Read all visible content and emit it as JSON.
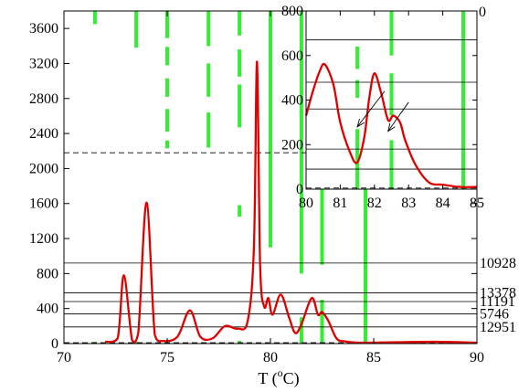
{
  "chart_data": [
    {
      "type": "line",
      "xlabel": {
        "pre": "T (",
        "sup": "o",
        "post": "C)"
      },
      "xlim": [
        70,
        90
      ],
      "ylim": [
        0,
        3800
      ],
      "xticks": [
        70,
        75,
        80,
        85,
        90
      ],
      "yticks": [
        0,
        400,
        800,
        1200,
        1600,
        2000,
        2400,
        2800,
        3200,
        3600
      ],
      "grid": false,
      "series": [
        {
          "color": "#e00000",
          "x": [
            72.0,
            72.6,
            72.9,
            73.3,
            73.6,
            74.0,
            74.4,
            74.8,
            75.5,
            76.1,
            76.6,
            77.2,
            77.8,
            78.4,
            78.9,
            79.2,
            79.35,
            79.5,
            79.7,
            79.9,
            80.1,
            80.5,
            80.9,
            81.2,
            81.5,
            82.0,
            82.3,
            82.5,
            82.8,
            83.2,
            83.6,
            84.5,
            86.0,
            88.0,
            90.0
          ],
          "y": [
            20,
            60,
            780,
            40,
            120,
            1610,
            100,
            30,
            80,
            380,
            80,
            60,
            200,
            170,
            260,
            1100,
            3220,
            900,
            420,
            520,
            330,
            560,
            300,
            120,
            220,
            520,
            330,
            360,
            260,
            60,
            25,
            10,
            15,
            20,
            10
          ]
        }
      ],
      "hlines": {
        "solid": [
          {
            "y": 920,
            "label": "10928"
          },
          {
            "y": 580,
            "label": "13378"
          },
          {
            "y": 480,
            "label": "11191"
          },
          {
            "y": 340,
            "label": "5746"
          },
          {
            "y": 190,
            "label": "12951"
          }
        ],
        "dashed": [
          2180,
          10
        ]
      },
      "vbars": {
        "color": "#33ee33",
        "segments": [
          {
            "x": 71.5,
            "y0": 3650,
            "y1": 3800
          },
          {
            "x": 71.5,
            "y0": 0,
            "y1": 20
          },
          {
            "x": 73.5,
            "y0": 3380,
            "y1": 3800
          },
          {
            "x": 73.5,
            "y0": 0,
            "y1": 20
          },
          {
            "x": 75.0,
            "y0": 3490,
            "y1": 3800
          },
          {
            "x": 75.0,
            "y0": 3180,
            "y1": 3390
          },
          {
            "x": 75.0,
            "y0": 2820,
            "y1": 3030
          },
          {
            "x": 75.0,
            "y0": 2420,
            "y1": 2680
          },
          {
            "x": 75.0,
            "y0": 2230,
            "y1": 2320
          },
          {
            "x": 77.0,
            "y0": 3400,
            "y1": 3800
          },
          {
            "x": 77.0,
            "y0": 2820,
            "y1": 3200
          },
          {
            "x": 77.0,
            "y0": 2240,
            "y1": 2640
          },
          {
            "x": 78.5,
            "y0": 3520,
            "y1": 3800
          },
          {
            "x": 78.5,
            "y0": 3050,
            "y1": 3360
          },
          {
            "x": 78.5,
            "y0": 2470,
            "y1": 2960
          },
          {
            "x": 78.5,
            "y0": 1450,
            "y1": 1580
          },
          {
            "x": 78.5,
            "y0": 0,
            "y1": 30
          },
          {
            "x": 80.0,
            "y0": 1100,
            "y1": 3800
          },
          {
            "x": 81.5,
            "y0": 800,
            "y1": 3800
          },
          {
            "x": 81.5,
            "y0": 0,
            "y1": 300
          },
          {
            "x": 82.5,
            "y0": 900,
            "y1": 3800
          },
          {
            "x": 82.5,
            "y0": 0,
            "y1": 500
          },
          {
            "x": 84.6,
            "y0": 0,
            "y1": 3800
          }
        ]
      }
    },
    {
      "type": "line",
      "inset": true,
      "xlim": [
        80,
        85
      ],
      "ylim": [
        0,
        800
      ],
      "xticks": [
        80,
        81,
        82,
        83,
        84,
        85
      ],
      "yticks": [
        0,
        200,
        400,
        600,
        800
      ],
      "right_tick_label": "0",
      "grid": false,
      "series": [
        {
          "color": "#e00000",
          "x": [
            80.0,
            80.2,
            80.4,
            80.55,
            80.8,
            81.0,
            81.3,
            81.5,
            81.7,
            81.85,
            82.0,
            82.2,
            82.4,
            82.55,
            82.75,
            82.9,
            83.2,
            83.6,
            84.0,
            84.5,
            85.0
          ],
          "y": [
            330,
            440,
            530,
            560,
            470,
            300,
            160,
            120,
            230,
            410,
            520,
            430,
            310,
            330,
            300,
            220,
            110,
            30,
            20,
            10,
            10
          ]
        }
      ],
      "hlines": {
        "solid": [
          670,
          480,
          360,
          180,
          90
        ],
        "dashed": [
          5
        ]
      },
      "vbars": {
        "color": "#33ee33",
        "segments": [
          {
            "x": 81.5,
            "y0": 540,
            "y1": 640
          },
          {
            "x": 81.5,
            "y0": 410,
            "y1": 490
          },
          {
            "x": 81.5,
            "y0": 0,
            "y1": 270
          },
          {
            "x": 82.5,
            "y0": 600,
            "y1": 800
          },
          {
            "x": 82.5,
            "y0": 330,
            "y1": 520
          },
          {
            "x": 82.5,
            "y0": 0,
            "y1": 220
          },
          {
            "x": 84.6,
            "y0": 0,
            "y1": 800
          }
        ]
      },
      "arrows": [
        {
          "from": [
            82.3,
            440
          ],
          "to": [
            81.5,
            280
          ]
        },
        {
          "from": [
            83.0,
            390
          ],
          "to": [
            82.4,
            260
          ]
        }
      ]
    }
  ]
}
